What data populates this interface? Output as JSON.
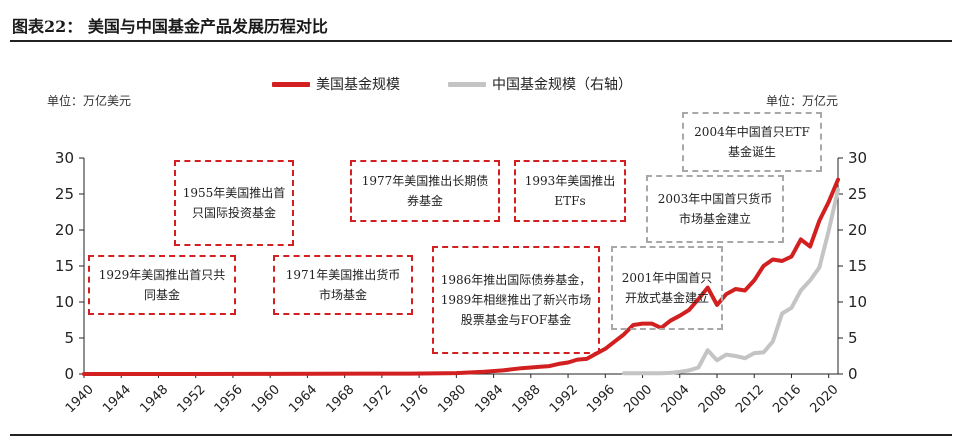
{
  "header": {
    "title": "图表22：  美国与中国基金产品发展历程对比",
    "unit_left": "单位：万亿美元",
    "unit_right": "单位：万亿元"
  },
  "legend": {
    "us": "美国基金规模",
    "cn": "中国基金规模（右轴）"
  },
  "colors": {
    "us": "#d21f1f",
    "cn": "#c4c4c4",
    "annotation_red": "#d21f1f",
    "annotation_gray": "#a8a8a8"
  },
  "annotations": [
    {
      "text": "1929年美国推出首只共同基金",
      "style": "red"
    },
    {
      "text": "1955年美国推出首只国际投资基金",
      "style": "red"
    },
    {
      "text": "1971年美国推出货币市场基金",
      "style": "red"
    },
    {
      "text": "1977年美国推出长期债券基金",
      "style": "red"
    },
    {
      "text": "1993年美国推出ETFs",
      "style": "red"
    },
    {
      "text": "1986年推出国际债券基金，1989年相继推出了新兴市场股票基金与FOF基金",
      "style": "red"
    },
    {
      "text": "2001年中国首只开放式基金建立",
      "style": "gray"
    },
    {
      "text": "2003年中国首只货币市场基金建立",
      "style": "gray"
    },
    {
      "text": "2004年中国首只ETF基金诞生",
      "style": "gray"
    }
  ],
  "chart_data": {
    "type": "line",
    "legend_position": "top",
    "grid": false,
    "x_range": [
      1940,
      2021
    ],
    "x_ticks": [
      "1940",
      "1944",
      "1948",
      "1952",
      "1956",
      "1960",
      "1964",
      "1968",
      "1972",
      "1976",
      "1980",
      "1984",
      "1988",
      "1992",
      "1996",
      "2000",
      "2004",
      "2008",
      "2012",
      "2016",
      "2020"
    ],
    "y_left": {
      "range": [
        0,
        30
      ],
      "ticks": [
        "0",
        "5",
        "10",
        "15",
        "20",
        "25",
        "30"
      ]
    },
    "y_right": {
      "range": [
        0,
        30
      ],
      "ticks": [
        "0",
        "5",
        "10",
        "15",
        "20",
        "25",
        "30"
      ]
    },
    "series": [
      {
        "name": "美国基金规模",
        "axis": "left",
        "color": "#d21f1f",
        "points": [
          [
            1940,
            0.0
          ],
          [
            1950,
            0.0
          ],
          [
            1960,
            0.02
          ],
          [
            1970,
            0.05
          ],
          [
            1975,
            0.05
          ],
          [
            1980,
            0.13
          ],
          [
            1983,
            0.3
          ],
          [
            1985,
            0.5
          ],
          [
            1987,
            0.8
          ],
          [
            1989,
            1.0
          ],
          [
            1990,
            1.1
          ],
          [
            1991,
            1.4
          ],
          [
            1992,
            1.6
          ],
          [
            1993,
            2.0
          ],
          [
            1994,
            2.1
          ],
          [
            1995,
            2.8
          ],
          [
            1996,
            3.5
          ],
          [
            1997,
            4.5
          ],
          [
            1998,
            5.5
          ],
          [
            1999,
            6.8
          ],
          [
            2000,
            7.0
          ],
          [
            2001,
            7.0
          ],
          [
            2002,
            6.4
          ],
          [
            2003,
            7.4
          ],
          [
            2004,
            8.1
          ],
          [
            2005,
            8.9
          ],
          [
            2006,
            10.4
          ],
          [
            2007,
            12.0
          ],
          [
            2008,
            9.6
          ],
          [
            2009,
            11.1
          ],
          [
            2010,
            11.8
          ],
          [
            2011,
            11.6
          ],
          [
            2012,
            13.0
          ],
          [
            2013,
            15.0
          ],
          [
            2014,
            15.9
          ],
          [
            2015,
            15.7
          ],
          [
            2016,
            16.3
          ],
          [
            2017,
            18.7
          ],
          [
            2018,
            17.7
          ],
          [
            2019,
            21.3
          ],
          [
            2020,
            23.9
          ],
          [
            2021,
            27.0
          ]
        ]
      },
      {
        "name": "中国基金规模（右轴）",
        "axis": "right",
        "color": "#c4c4c4",
        "points": [
          [
            1998,
            0.1
          ],
          [
            1999,
            0.1
          ],
          [
            2000,
            0.1
          ],
          [
            2001,
            0.1
          ],
          [
            2002,
            0.1
          ],
          [
            2003,
            0.15
          ],
          [
            2004,
            0.3
          ],
          [
            2005,
            0.5
          ],
          [
            2006,
            0.9
          ],
          [
            2007,
            3.3
          ],
          [
            2008,
            1.9
          ],
          [
            2009,
            2.7
          ],
          [
            2010,
            2.5
          ],
          [
            2011,
            2.2
          ],
          [
            2012,
            2.9
          ],
          [
            2013,
            3.0
          ],
          [
            2014,
            4.5
          ],
          [
            2015,
            8.4
          ],
          [
            2016,
            9.2
          ],
          [
            2017,
            11.6
          ],
          [
            2018,
            13.0
          ],
          [
            2019,
            14.8
          ],
          [
            2020,
            19.9
          ],
          [
            2021,
            25.6
          ]
        ]
      }
    ]
  }
}
